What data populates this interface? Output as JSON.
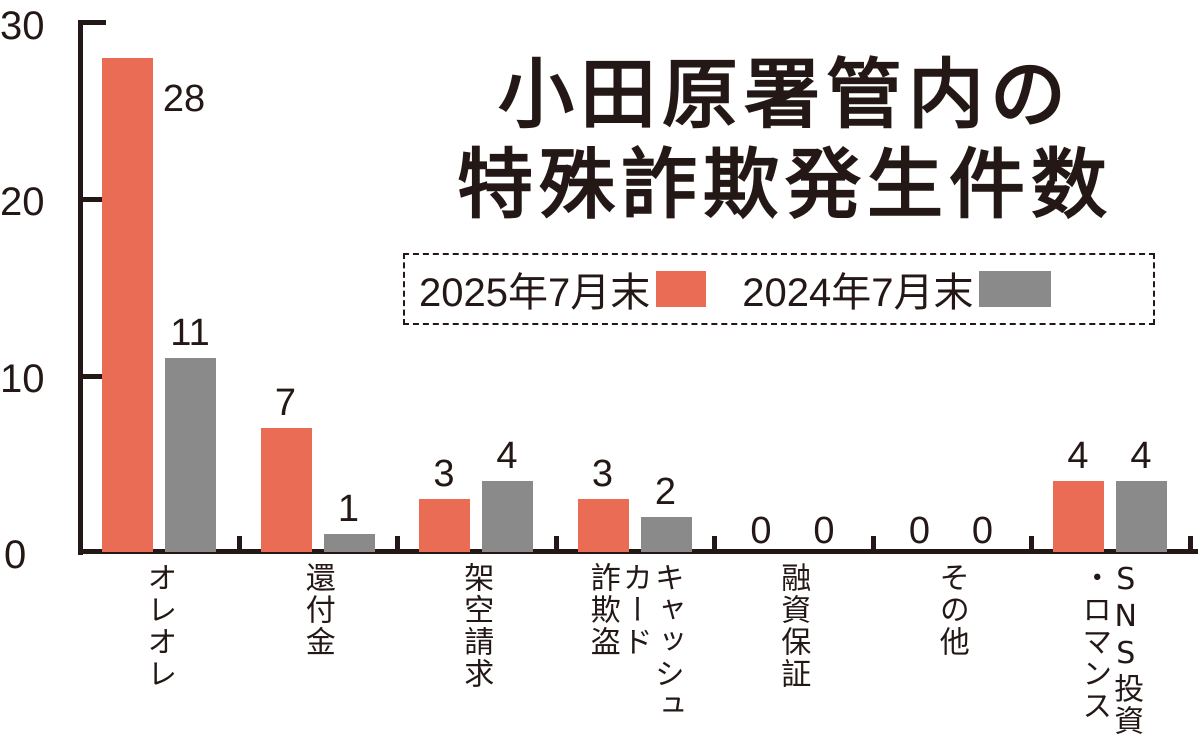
{
  "chart_data": {
    "type": "bar",
    "title": "小田原署管内の特殊詐欺発生件数",
    "title_lines": [
      "小田原署管内の",
      "特殊詐欺発生件数"
    ],
    "categories": [
      "オレオレ",
      "還付金",
      "架空請求",
      "キャッシュカード詐欺盗",
      "融資保証",
      "その他",
      "SNS投資・ロマンス"
    ],
    "category_label_columns": [
      [
        "オレオレ"
      ],
      [
        "還付金"
      ],
      [
        "架空請求"
      ],
      [
        "詐欺盗",
        "カード",
        "キャッシュ"
      ],
      [
        "融資保証"
      ],
      [
        "その他"
      ],
      [
        "・ロマンス",
        "SNS投資"
      ]
    ],
    "series": [
      {
        "name": "2025年7月末",
        "color": "#EB6C55",
        "values": [
          28,
          7,
          3,
          3,
          0,
          0,
          4
        ]
      },
      {
        "name": "2024年7月末",
        "color": "#8A8A8A",
        "values": [
          11,
          1,
          4,
          2,
          0,
          0,
          4
        ]
      }
    ],
    "xlabel": "",
    "ylabel": "",
    "ylim": [
      0,
      30
    ],
    "yticks": [
      "0",
      "10",
      "20",
      "30"
    ],
    "grid": false,
    "legend_position": "top-right (dashed box under title)"
  },
  "legend": {
    "item1": "2025年7月末",
    "item2": "2024年7月末"
  }
}
